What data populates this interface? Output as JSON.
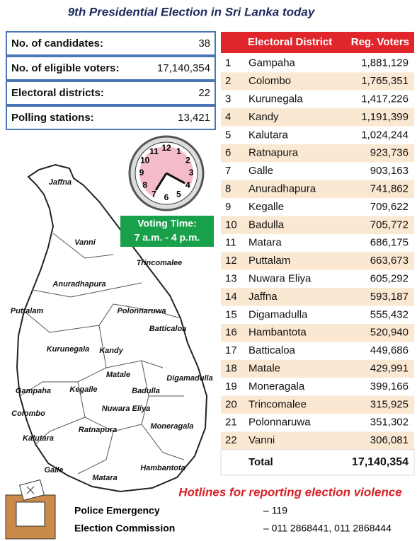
{
  "title": "9th Presidential Election in Sri Lanka today",
  "stats": [
    {
      "label": "No. of candidates:",
      "value": "38"
    },
    {
      "label": "No. of eligible voters:",
      "value": "17,140,354"
    },
    {
      "label": "Electoral districts:",
      "value": "22"
    },
    {
      "label": "Polling stations:",
      "value": "13,421"
    }
  ],
  "clock": {
    "numbers": [
      "12",
      "1",
      "2",
      "3",
      "4",
      "5",
      "6",
      "7",
      "8",
      "9",
      "10",
      "11"
    ],
    "voting_time_title": "Voting Time:",
    "voting_time": "7 a.m. - 4 p.m."
  },
  "map_labels": [
    "Jaffna",
    "Vanni",
    "Trincomalee",
    "Anuradhapura",
    "Puttalam",
    "Polonnaruwa",
    "Batticaloa",
    "Kurunegala",
    "Kandy",
    "Matale",
    "Digamadulla",
    "Gampaha",
    "Kegalle",
    "Badulla",
    "Colombo",
    "Nuwara Eliya",
    "Moneragala",
    "Kalutara",
    "Ratnapura",
    "Galle",
    "Matara",
    "Hambantota"
  ],
  "table": {
    "header": [
      "Electoral District",
      "Reg. Voters"
    ],
    "rows": [
      [
        "1",
        "Gampaha",
        "1,881,129"
      ],
      [
        "2",
        "Colombo",
        "1,765,351"
      ],
      [
        "3",
        "Kurunegala",
        "1,417,226"
      ],
      [
        "4",
        "Kandy",
        "1,191,399"
      ],
      [
        "5",
        "Kalutara",
        "1,024,244"
      ],
      [
        "6",
        "Ratnapura",
        "923,736"
      ],
      [
        "7",
        "Galle",
        "903,163"
      ],
      [
        "8",
        "Anuradhapura",
        "741,862"
      ],
      [
        "9",
        "Kegalle",
        "709,622"
      ],
      [
        "10",
        "Badulla",
        "705,772"
      ],
      [
        "11",
        "Matara",
        "686,175"
      ],
      [
        "12",
        "Puttalam",
        "663,673"
      ],
      [
        "13",
        "Nuwara Eliya",
        "605,292"
      ],
      [
        "14",
        "Jaffna",
        "593,187"
      ],
      [
        "15",
        "Digamadulla",
        "555,432"
      ],
      [
        "16",
        "Hambantota",
        "520,940"
      ],
      [
        "17",
        "Batticaloa",
        "449,686"
      ],
      [
        "18",
        "Matale",
        "429,991"
      ],
      [
        "19",
        "Moneragala",
        "399,166"
      ],
      [
        "20",
        "Trincomalee",
        "315,925"
      ],
      [
        "21",
        "Polonnaruwa",
        "351,302"
      ],
      [
        "22",
        "Vanni",
        "306,081"
      ]
    ],
    "total": [
      "Total",
      "17,140,354"
    ]
  },
  "hotlines": {
    "title": "Hotlines for reporting election violence",
    "entries": [
      {
        "name": "Police Emergency",
        "number": "– 119"
      },
      {
        "name": "Election Commission",
        "number": "– 011 2868441, 011 2868444"
      }
    ]
  }
}
